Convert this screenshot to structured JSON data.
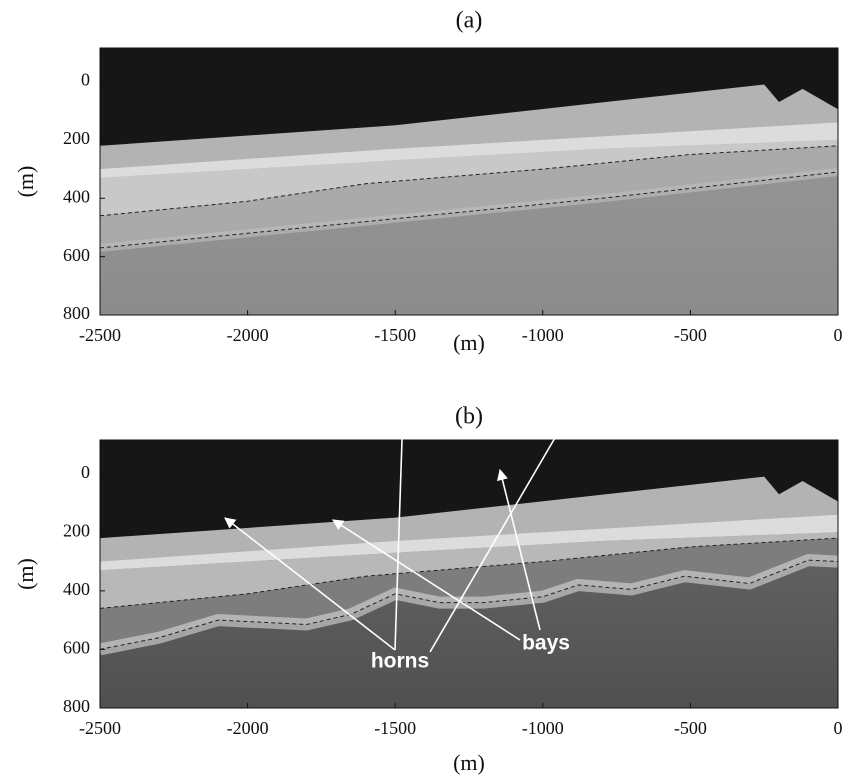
{
  "chart_data": [
    {
      "type": "image",
      "title": "(a)",
      "xlabel": "(m)",
      "ylabel": "(m)",
      "xlim": [
        -2500,
        0
      ],
      "xticks": [
        -2500,
        -2000,
        -1500,
        -1000,
        -500,
        0
      ],
      "ylim": [
        -115,
        800
      ],
      "yticks": [
        0,
        200,
        400,
        600,
        800
      ],
      "y_reversed": true
    },
    {
      "type": "image",
      "title": "(b)",
      "xlabel": "(m)",
      "ylabel": "(m)",
      "xlim": [
        -2500,
        0
      ],
      "xticks": [
        -2500,
        -2000,
        -1500,
        -1000,
        -500,
        0
      ],
      "ylim": [
        -115,
        800
      ],
      "yticks": [
        0,
        200,
        400,
        600,
        800
      ],
      "y_reversed": true,
      "annotations": [
        "horns",
        "bays"
      ]
    }
  ]
}
